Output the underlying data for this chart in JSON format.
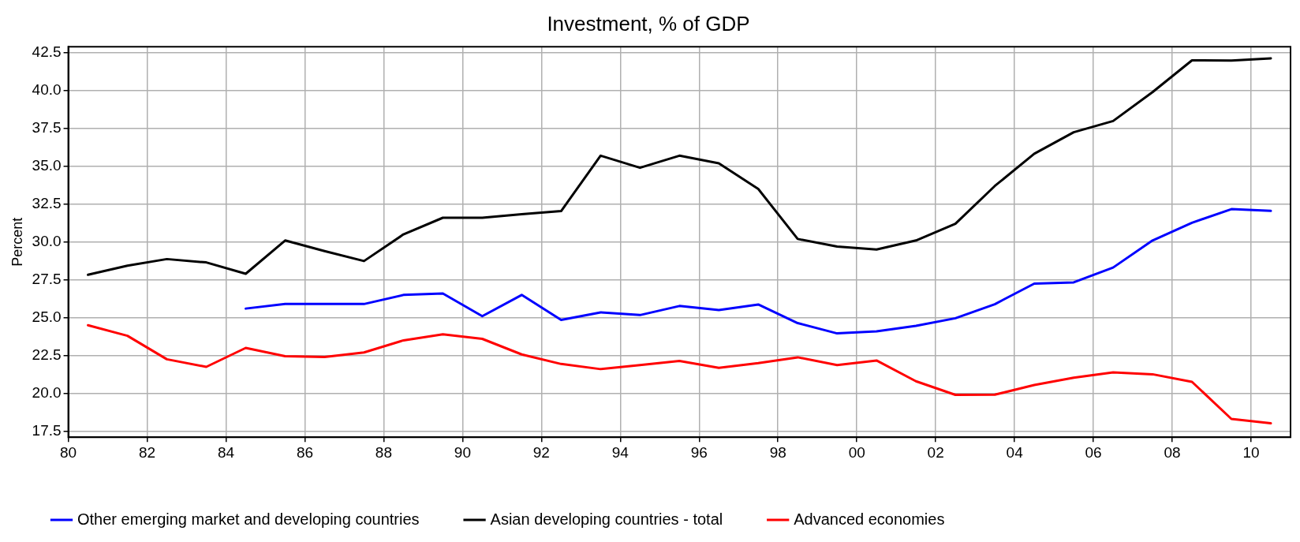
{
  "chart_data": {
    "type": "line",
    "title": "Investment, % of GDP",
    "ylabel": "Percent",
    "x": [
      1980.5,
      1981.5,
      1982.5,
      1983.5,
      1984.5,
      1985.5,
      1986.5,
      1987.5,
      1988.5,
      1989.5,
      1990.5,
      1991.5,
      1992.5,
      1993.5,
      1994.5,
      1995.5,
      1996.5,
      1997.5,
      1998.5,
      1999.5,
      2000.5,
      2001.5,
      2002.5,
      2003.5,
      2004.5,
      2005.5,
      2006.5,
      2007.5,
      2008.5,
      2009.5,
      2010.5
    ],
    "series": [
      {
        "name": "Other emerging market and developing countries",
        "color": "#0000ff",
        "values": [
          null,
          null,
          null,
          null,
          25.6,
          25.9,
          25.9,
          25.9,
          26.5,
          26.6,
          25.1,
          26.5,
          24.85,
          25.35,
          25.17,
          25.77,
          25.5,
          25.87,
          24.64,
          23.96,
          24.1,
          24.46,
          24.96,
          25.89,
          27.25,
          27.33,
          28.31,
          30.1,
          31.27,
          32.17,
          32.05
        ]
      },
      {
        "name": "Asian developing countries - total",
        "color": "#000000",
        "values": [
          27.83,
          28.43,
          28.87,
          28.65,
          27.9,
          30.1,
          29.4,
          28.74,
          30.5,
          31.6,
          31.6,
          31.84,
          32.04,
          35.7,
          34.9,
          35.7,
          35.2,
          33.5,
          30.2,
          29.7,
          29.5,
          30.1,
          31.2,
          33.7,
          35.83,
          37.25,
          37.99,
          39.9,
          42.0,
          41.98,
          42.13
        ]
      },
      {
        "name": "Advanced economies",
        "color": "#ff0000",
        "values": [
          24.5,
          23.8,
          22.25,
          21.75,
          23.0,
          22.45,
          22.4,
          22.7,
          23.5,
          23.9,
          23.6,
          22.57,
          21.94,
          21.6,
          21.87,
          22.14,
          21.68,
          22.0,
          22.38,
          21.87,
          22.17,
          20.8,
          19.9,
          19.91,
          20.55,
          21.03,
          21.39,
          21.26,
          20.76,
          18.31,
          18.02
        ]
      }
    ],
    "xlim": [
      1980,
      2011
    ],
    "xticks": [
      {
        "value": 1980,
        "label": "80"
      },
      {
        "value": 1982,
        "label": "82"
      },
      {
        "value": 1984,
        "label": "84"
      },
      {
        "value": 1986,
        "label": "86"
      },
      {
        "value": 1988,
        "label": "88"
      },
      {
        "value": 1990,
        "label": "90"
      },
      {
        "value": 1992,
        "label": "92"
      },
      {
        "value": 1994,
        "label": "94"
      },
      {
        "value": 1996,
        "label": "96"
      },
      {
        "value": 1998,
        "label": "98"
      },
      {
        "value": 2000,
        "label": "00"
      },
      {
        "value": 2002,
        "label": "02"
      },
      {
        "value": 2004,
        "label": "04"
      },
      {
        "value": 2006,
        "label": "06"
      },
      {
        "value": 2008,
        "label": "08"
      },
      {
        "value": 2010,
        "label": "10"
      }
    ],
    "ylim": [
      17.1,
      42.9
    ],
    "yticks": [
      {
        "value": 17.5,
        "label": "17.5"
      },
      {
        "value": 20,
        "label": "20.0"
      },
      {
        "value": 22.5,
        "label": "22.5"
      },
      {
        "value": 25,
        "label": "25.0"
      },
      {
        "value": 27.5,
        "label": "27.5"
      },
      {
        "value": 30,
        "label": "30.0"
      },
      {
        "value": 32.5,
        "label": "32.5"
      },
      {
        "value": 35,
        "label": "35.0"
      },
      {
        "value": 37.5,
        "label": "37.5"
      },
      {
        "value": 40,
        "label": "40.0"
      },
      {
        "value": 42.5,
        "label": "42.5"
      }
    ],
    "grid": true,
    "legend": "bottom",
    "marker": "none",
    "line_style": "solid"
  }
}
